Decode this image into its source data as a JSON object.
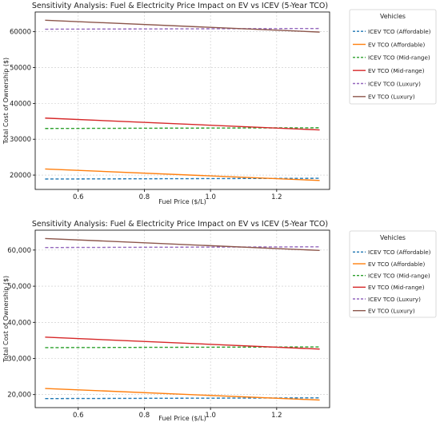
{
  "chart_data": [
    {
      "type": "line",
      "title": "Sensitivity Analysis: Fuel & Electricity Price Impact on EV vs ICEV (5-Year TCO)",
      "xlabel": "Fuel Price ($/L)",
      "ylabel": "Total Cost of Ownership ($)",
      "xlim": [
        0.47,
        1.36
      ],
      "ylim": [
        16000,
        65500
      ],
      "xticks": [
        0.6,
        0.8,
        1.0,
        1.2
      ],
      "xtick_labels": [
        "0.6",
        "0.8",
        "1.0",
        "1.2"
      ],
      "yticks": [
        20000,
        30000,
        40000,
        50000,
        60000
      ],
      "ytick_labels": [
        "20000",
        "30000",
        "40000",
        "50000",
        "60000"
      ],
      "grid": true,
      "legend_title": "Vehicles",
      "legend_position": "outside-right",
      "series": [
        {
          "name": "ICEV TCO (Affordable)",
          "color": "#1f77b4",
          "dashed": true,
          "x": [
            0.5,
            1.33
          ],
          "y": [
            18900,
            19100
          ]
        },
        {
          "name": "EV TCO (Affordable)",
          "color": "#ff7f0e",
          "dashed": false,
          "x": [
            0.5,
            1.33
          ],
          "y": [
            21700,
            18500
          ]
        },
        {
          "name": "ICEV TCO (Mid-range)",
          "color": "#2ca02c",
          "dashed": true,
          "x": [
            0.5,
            1.33
          ],
          "y": [
            33000,
            33200
          ]
        },
        {
          "name": "EV TCO (Mid-range)",
          "color": "#d62728",
          "dashed": false,
          "x": [
            0.5,
            1.33
          ],
          "y": [
            35900,
            32600
          ]
        },
        {
          "name": "ICEV TCO (Luxury)",
          "color": "#9467bd",
          "dashed": true,
          "x": [
            0.5,
            1.33
          ],
          "y": [
            60700,
            60900
          ]
        },
        {
          "name": "EV TCO (Luxury)",
          "color": "#8c564b",
          "dashed": false,
          "x": [
            0.5,
            1.33
          ],
          "y": [
            63200,
            59900
          ]
        }
      ]
    },
    {
      "type": "line",
      "title": "Sensitivity Analysis: Fuel & Electricity Price Impact on EV vs ICEV (5-Year TCO)",
      "xlabel": "Fuel Price ($/L)",
      "ylabel": "Total Cost of Ownership ($)",
      "xlim": [
        0.47,
        1.36
      ],
      "ylim": [
        16400,
        65500
      ],
      "xticks": [
        0.6,
        0.8,
        1.0,
        1.2
      ],
      "xtick_labels": [
        "0.6",
        "0.8",
        "1.0",
        "1.2"
      ],
      "yticks": [
        20000,
        30000,
        40000,
        50000,
        60000
      ],
      "ytick_labels": [
        "20,000",
        "30,000",
        "40,000",
        "50,000",
        "60,000"
      ],
      "grid": true,
      "legend_title": "Vehicles",
      "legend_position": "outside-right",
      "series": [
        {
          "name": "ICEV TCO (Affordable)",
          "color": "#1f77b4",
          "dashed": true,
          "x": [
            0.5,
            1.33
          ],
          "y": [
            18900,
            19100
          ]
        },
        {
          "name": "EV TCO (Affordable)",
          "color": "#ff7f0e",
          "dashed": false,
          "x": [
            0.5,
            1.33
          ],
          "y": [
            21700,
            18500
          ]
        },
        {
          "name": "ICEV TCO (Mid-range)",
          "color": "#2ca02c",
          "dashed": true,
          "x": [
            0.5,
            1.33
          ],
          "y": [
            33000,
            33200
          ]
        },
        {
          "name": "EV TCO (Mid-range)",
          "color": "#d62728",
          "dashed": false,
          "x": [
            0.5,
            1.33
          ],
          "y": [
            35900,
            32600
          ]
        },
        {
          "name": "ICEV TCO (Luxury)",
          "color": "#9467bd",
          "dashed": true,
          "x": [
            0.5,
            1.33
          ],
          "y": [
            60700,
            60900
          ]
        },
        {
          "name": "EV TCO (Luxury)",
          "color": "#8c564b",
          "dashed": false,
          "x": [
            0.5,
            1.33
          ],
          "y": [
            63200,
            59900
          ]
        }
      ]
    }
  ]
}
